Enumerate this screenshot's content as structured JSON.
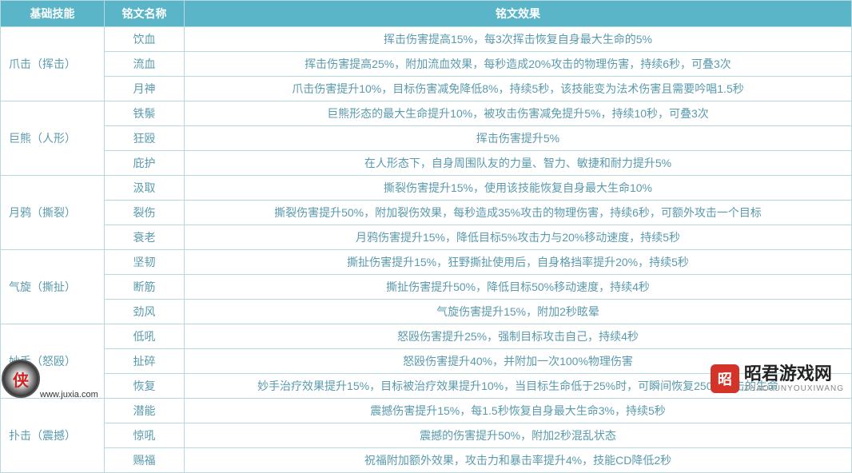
{
  "headers": {
    "skill": "基础技能",
    "name": "铭文名称",
    "effect": "铭文效果"
  },
  "groups": [
    {
      "skill": "爪击（挥击）",
      "rows": [
        {
          "name": "饮血",
          "effect": "挥击伤害提高15%，每3次挥击恢复自身最大生命的5%"
        },
        {
          "name": "流血",
          "effect": "挥击伤害提高25%，附加流血效果，每秒造成20%攻击的物理伤害，持续6秒，可叠3次"
        },
        {
          "name": "月神",
          "effect": "爪击伤害提升10%，目标伤害减免降低8%，持续5秒，该技能变为法术伤害且需要吟唱1.5秒"
        }
      ]
    },
    {
      "skill": "巨熊（人形）",
      "rows": [
        {
          "name": "铁鬃",
          "effect": "巨熊形态的最大生命提升10%，被攻击伤害减免提升5%，持续10秒，可叠3次"
        },
        {
          "name": "狂殴",
          "effect": "挥击伤害提升5%"
        },
        {
          "name": "庇护",
          "effect": "在人形态下，自身周围队友的力量、智力、敏捷和耐力提升5%"
        }
      ]
    },
    {
      "skill": "月鸦（撕裂）",
      "rows": [
        {
          "name": "汲取",
          "effect": "撕裂伤害提升15%，使用该技能恢复自身最大生命10%"
        },
        {
          "name": "裂伤",
          "effect": "撕裂伤害提升50%，附加裂伤效果，每秒造成35%攻击的物理伤害，持续6秒，可额外攻击一个目标"
        },
        {
          "name": "衰老",
          "effect": "月鸦伤害提升15%，降低目标5%攻击力与20%移动速度，持续5秒"
        }
      ]
    },
    {
      "skill": "气旋（撕扯）",
      "rows": [
        {
          "name": "坚韧",
          "effect": "撕扯伤害提升15%，狂野撕扯使用后，自身格挡率提升20%，持续5秒"
        },
        {
          "name": "断筋",
          "effect": "撕扯伤害提升50%，降低目标50%移动速度，持续4秒"
        },
        {
          "name": "劲风",
          "effect": "气旋伤害提升15%，附加2秒眩晕"
        }
      ]
    },
    {
      "skill": "妙手（怒殴）",
      "rows": [
        {
          "name": "低吼",
          "effect": "怒殴伤害提升25%，强制目标攻击自己，持续4秒"
        },
        {
          "name": "扯碎",
          "effect": "怒殴伤害提升40%，并附加一次100%物理伤害"
        },
        {
          "name": "恢复",
          "effect": "妙手治疗效果提升15%，目标被治疗效果提升10%，当目标生命低于25%时，可瞬间恢复250%攻击的生命"
        }
      ]
    },
    {
      "skill": "扑击（震撼）",
      "rows": [
        {
          "name": "潜能",
          "effect": "震撼伤害提升15%，每1.5秒恢复自身最大生命3%，持续5秒"
        },
        {
          "name": "惊吼",
          "effect": "震撼的伤害提升50%，附加2秒混乱状态"
        },
        {
          "name": "赐福",
          "effect": "祝福附加额外效果，攻击力和暴击率提升4%，技能CD降低2秒"
        }
      ]
    }
  ],
  "watermarks": {
    "left": {
      "char": "侠",
      "site": "www.juxia.com"
    },
    "right": {
      "logo_char": "昭",
      "main": "昭君游戏网",
      "sub": "ZHAOJUNYOUXIWANG"
    }
  },
  "colors": {
    "header_bg": "#5bb5c9",
    "header_text": "#ffffff",
    "border": "#b8d8e0",
    "cell_text": "#5a9aad",
    "logo_bg": "#d4332a"
  }
}
